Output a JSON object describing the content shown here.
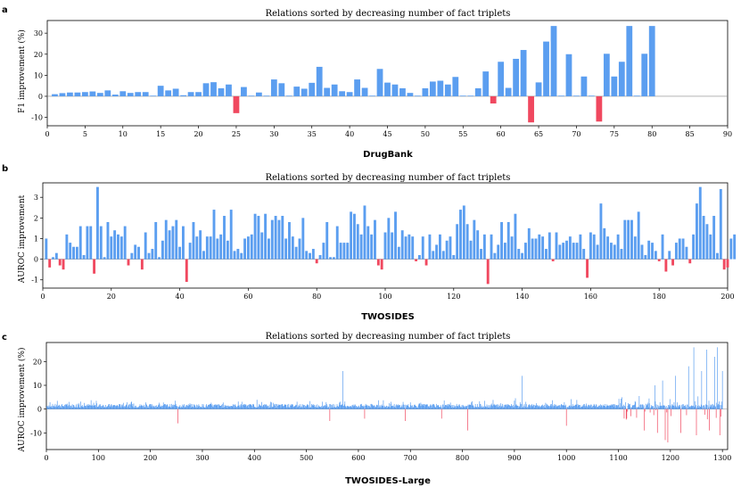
{
  "colors": {
    "positive": "#5b9ef0",
    "negative": "#f0485f",
    "axis": "#000000",
    "zero_line": "#888888"
  },
  "chart_data": [
    {
      "panel": "a",
      "type": "bar",
      "title": "Relations sorted by decreasing number of fact triplets",
      "xlabel": "DrugBank",
      "ylabel": "F1 improvement (%)",
      "xlim": [
        0,
        90
      ],
      "ylim": [
        -14,
        36
      ],
      "xticks": [
        0,
        5,
        10,
        15,
        20,
        25,
        30,
        35,
        40,
        45,
        50,
        55,
        60,
        65,
        70,
        75,
        80,
        85,
        90
      ],
      "yticks": [
        -10,
        0,
        10,
        20,
        30
      ],
      "bar_width": 0.8,
      "values": [
        1.0,
        1.5,
        1.8,
        1.8,
        2.0,
        2.3,
        1.6,
        2.8,
        0.8,
        2.4,
        1.6,
        2.0,
        2.0,
        0.3,
        5.0,
        2.8,
        3.6,
        0.5,
        2.0,
        2.0,
        6.2,
        6.7,
        3.8,
        5.6,
        -8.0,
        4.4,
        0.3,
        1.8,
        0.3,
        8.0,
        6.2,
        0.3,
        4.6,
        3.6,
        6.4,
        14.0,
        4.0,
        5.6,
        2.4,
        2.0,
        8.0,
        4.0,
        0.3,
        13.0,
        6.5,
        5.6,
        3.8,
        1.6,
        0.3,
        3.8,
        7.0,
        7.4,
        5.6,
        9.2,
        0.3,
        0.3,
        3.8,
        11.8,
        -3.4,
        16.4,
        4.0,
        17.8,
        22.0,
        -12.4,
        6.6,
        26.0,
        33.4,
        0.3,
        20.0,
        0.3,
        9.4,
        0.3,
        -12.0,
        20.2,
        9.4,
        16.4,
        33.4,
        0.3,
        20.2,
        33.4
      ]
    },
    {
      "panel": "b",
      "type": "bar",
      "title": "Relations sorted by decreasing number of fact triplets",
      "xlabel": "TWOSIDES",
      "ylabel": "AUROC improvement",
      "xlim": [
        0,
        200
      ],
      "ylim": [
        -1.4,
        3.7
      ],
      "xticks": [
        0,
        20,
        40,
        60,
        80,
        100,
        120,
        140,
        160,
        180,
        200
      ],
      "yticks": [
        -1,
        0,
        1,
        2,
        3
      ],
      "bar_width": 0.75,
      "values": [
        1.0,
        -0.4,
        0.1,
        0.3,
        -0.3,
        -0.5,
        1.2,
        0.8,
        0.6,
        0.6,
        1.6,
        0.2,
        1.6,
        1.6,
        -0.7,
        3.5,
        1.6,
        0.1,
        1.8,
        1.1,
        1.4,
        1.2,
        1.1,
        1.6,
        -0.3,
        0.3,
        0.7,
        0.6,
        -0.5,
        1.3,
        0.3,
        0.5,
        1.8,
        0.1,
        0.9,
        1.9,
        1.4,
        1.6,
        1.9,
        0.6,
        1.6,
        -1.1,
        0.8,
        1.8,
        1.1,
        1.4,
        0.4,
        1.1,
        1.1,
        2.4,
        1.0,
        1.2,
        2.1,
        0.9,
        2.4,
        0.4,
        0.5,
        0.3,
        1.0,
        1.1,
        1.2,
        2.2,
        2.1,
        1.3,
        2.2,
        1.0,
        1.9,
        2.1,
        1.9,
        2.1,
        1.0,
        1.8,
        1.1,
        0.6,
        1.0,
        2.0,
        0.4,
        0.3,
        0.5,
        -0.2,
        0.2,
        0.8,
        1.8,
        0.1,
        0.1,
        1.6,
        0.8,
        0.8,
        0.8,
        2.3,
        2.2,
        1.7,
        1.2,
        2.6,
        1.6,
        1.2,
        1.9,
        -0.3,
        -0.5,
        1.3,
        2.0,
        1.3,
        2.3,
        0.6,
        1.4,
        1.1,
        1.2,
        1.1,
        -0.1,
        0.2,
        1.1,
        -0.3,
        1.2,
        0.4,
        0.7,
        1.2,
        0.4,
        0.9,
        1.1,
        0.2,
        1.7,
        2.4,
        2.6,
        1.7,
        0.9,
        1.9,
        1.4,
        0.5,
        1.2,
        -1.2,
        1.2,
        0.3,
        0.7,
        1.8,
        0.8,
        1.8,
        1.1,
        2.2,
        0.5,
        0.3,
        0.8,
        1.5,
        1.0,
        1.0,
        1.2,
        1.1,
        0.5,
        1.3,
        -0.1,
        1.3,
        0.7,
        0.8,
        0.9,
        1.1,
        0.8,
        0.8,
        1.2,
        0.5,
        -0.9,
        1.3,
        1.2,
        0.7,
        2.7,
        1.5,
        1.1,
        0.8,
        0.7,
        1.2,
        0.5,
        1.9,
        1.9,
        1.9,
        1.1,
        2.3,
        0.7,
        0.2,
        0.9,
        0.8,
        0.4,
        -0.1,
        1.2,
        -0.6,
        0.4,
        -0.3,
        0.8,
        1.0,
        1.0,
        0.6,
        -0.2,
        1.2,
        2.7,
        3.5,
        2.1,
        1.7,
        1.2,
        2.1,
        0.3,
        3.4,
        -0.5,
        -0.4,
        1.0,
        1.2
      ]
    },
    {
      "panel": "c",
      "type": "bar",
      "title": "Relations sorted by decreasing number of fact triplets",
      "xlabel": "TWOSIDES-Large",
      "ylabel": "AUROC improvement (%)",
      "xlim": [
        0,
        1310
      ],
      "ylim": [
        -17,
        28
      ],
      "xticks": [
        0,
        100,
        200,
        300,
        400,
        500,
        600,
        700,
        800,
        900,
        1000,
        1100,
        1200,
        1300
      ],
      "yticks": [
        -10,
        0,
        10,
        20
      ],
      "n_relations": 1300,
      "generation": "dense per-relation bars; baseline +0.5..+2 with sparse spikes",
      "spikes": [
        [
          253,
          5.5
        ],
        [
          253,
          -6
        ],
        [
          545,
          -5
        ],
        [
          570,
          16
        ],
        [
          612,
          -4
        ],
        [
          690,
          -5
        ],
        [
          760,
          -4
        ],
        [
          810,
          -9
        ],
        [
          915,
          14
        ],
        [
          1000,
          -7
        ],
        [
          1140,
          5.5
        ],
        [
          1150,
          -9
        ],
        [
          1170,
          10
        ],
        [
          1175,
          -10
        ],
        [
          1185,
          12
        ],
        [
          1190,
          -13
        ],
        [
          1195,
          -14
        ],
        [
          1210,
          14
        ],
        [
          1220,
          -10
        ],
        [
          1235,
          18
        ],
        [
          1245,
          26
        ],
        [
          1250,
          -11
        ],
        [
          1260,
          16
        ],
        [
          1270,
          25
        ],
        [
          1275,
          -9
        ],
        [
          1285,
          22
        ],
        [
          1290,
          26
        ],
        [
          1295,
          -11
        ],
        [
          1300,
          16
        ],
        [
          1302,
          -9
        ]
      ]
    }
  ]
}
